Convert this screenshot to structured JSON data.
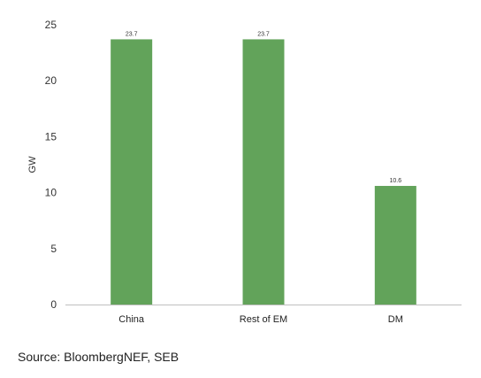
{
  "chart_data": {
    "type": "bar",
    "categories": [
      "China",
      "Rest of EM",
      "DM"
    ],
    "values": [
      23.7,
      23.7,
      10.6
    ],
    "data_labels": [
      "23.7",
      "23.7",
      "10.6"
    ],
    "title": "",
    "xlabel": "",
    "ylabel": "GW",
    "ylim": [
      0,
      25
    ],
    "yticks": [
      0,
      5,
      10,
      15,
      20,
      25
    ],
    "grid": false,
    "bar_color": "#62a35a",
    "legend": "none"
  },
  "source": {
    "text": "Source: BloombergNEF, SEB"
  }
}
